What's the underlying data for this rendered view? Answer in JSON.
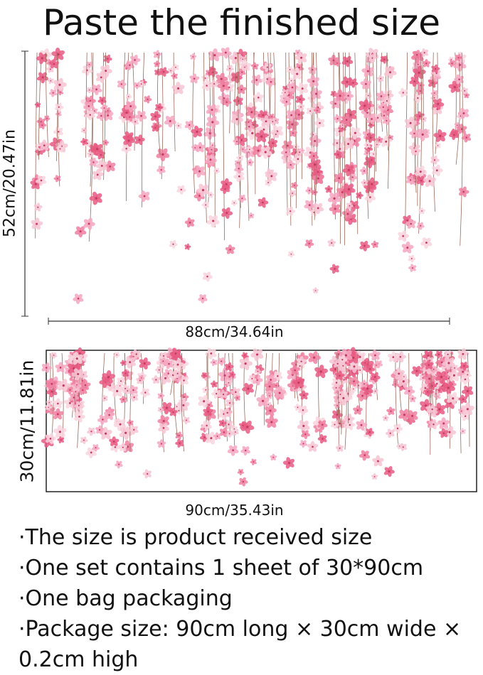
{
  "header": {
    "title": "Paste the finished size"
  },
  "preview": {
    "height_label": "52cm/20.47in",
    "width_label": "88cm/34.64in"
  },
  "sheet": {
    "height_label": "30cm/11.81in",
    "width_label": "90cm/35.43in"
  },
  "notes": [
    "·The size is product received size",
    "·One set contains 1 sheet of 30*90cm",
    "·One bag packaging",
    "·Package size: 90cm long × 30cm wide × 0.2cm high"
  ]
}
